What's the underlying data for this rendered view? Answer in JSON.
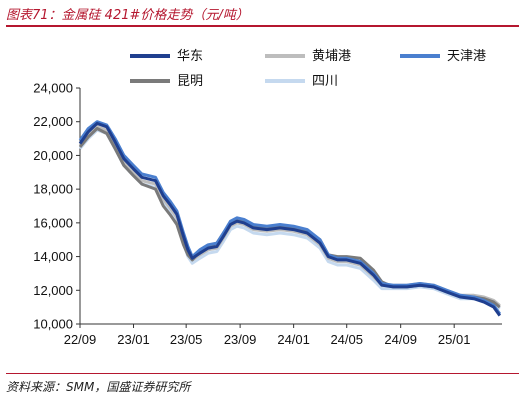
{
  "header": {
    "title": "图表71：金属硅 421#价格走势（元/吨）"
  },
  "footer": {
    "source": "资料来源：SMM，国盛证券研究所"
  },
  "chart_data": {
    "type": "line",
    "title": "",
    "xlabel": "",
    "ylabel": "",
    "ylim": [
      10000,
      24000
    ],
    "yticks": [
      "10,000",
      "12,000",
      "14,000",
      "16,000",
      "18,000",
      "20,000",
      "22,000",
      "24,000"
    ],
    "yticks_values": [
      10000,
      12000,
      14000,
      16000,
      18000,
      20000,
      22000,
      24000
    ],
    "xticks": [
      "22/09",
      "23/01",
      "23/05",
      "23/09",
      "24/01",
      "24/05",
      "24/09",
      "25/01"
    ],
    "xticks_values": [
      "2022-09-01",
      "2023-01-01",
      "2023-05-01",
      "2023-09-01",
      "2024-01-01",
      "2024-05-01",
      "2024-09-01",
      "2025-01-01"
    ],
    "xlim": [
      "2022-09-01",
      "2025-04-20"
    ],
    "grid": false,
    "legend": "top",
    "series": [
      {
        "name": "华东",
        "color": "#1f3f8f",
        "points": [
          [
            "2022-09-01",
            20700
          ],
          [
            "2022-09-20",
            21400
          ],
          [
            "2022-10-10",
            21900
          ],
          [
            "2022-11-01",
            21700
          ],
          [
            "2022-11-20",
            20800
          ],
          [
            "2022-12-10",
            19800
          ],
          [
            "2023-01-01",
            19200
          ],
          [
            "2023-01-20",
            18700
          ],
          [
            "2023-02-20",
            18500
          ],
          [
            "2023-03-10",
            17600
          ],
          [
            "2023-03-25",
            17100
          ],
          [
            "2023-04-10",
            16500
          ],
          [
            "2023-04-25",
            15200
          ],
          [
            "2023-05-05",
            14400
          ],
          [
            "2023-05-15",
            13900
          ],
          [
            "2023-06-01",
            14200
          ],
          [
            "2023-06-20",
            14500
          ],
          [
            "2023-07-10",
            14600
          ],
          [
            "2023-07-25",
            15200
          ],
          [
            "2023-08-10",
            15900
          ],
          [
            "2023-08-25",
            16100
          ],
          [
            "2023-09-10",
            16000
          ],
          [
            "2023-10-01",
            15700
          ],
          [
            "2023-11-01",
            15600
          ],
          [
            "2023-12-01",
            15700
          ],
          [
            "2024-01-01",
            15600
          ],
          [
            "2024-02-01",
            15400
          ],
          [
            "2024-03-01",
            14800
          ],
          [
            "2024-03-20",
            14000
          ],
          [
            "2024-04-10",
            13800
          ],
          [
            "2024-05-01",
            13800
          ],
          [
            "2024-06-01",
            13600
          ],
          [
            "2024-07-01",
            12900
          ],
          [
            "2024-07-20",
            12300
          ],
          [
            "2024-08-15",
            12200
          ],
          [
            "2024-09-15",
            12200
          ],
          [
            "2024-10-15",
            12300
          ],
          [
            "2024-11-15",
            12200
          ],
          [
            "2024-12-15",
            11900
          ],
          [
            "2025-01-15",
            11600
          ],
          [
            "2025-02-15",
            11500
          ],
          [
            "2025-03-10",
            11300
          ],
          [
            "2025-04-01",
            11000
          ],
          [
            "2025-04-15",
            10500
          ]
        ]
      },
      {
        "name": "黄埔港",
        "color": "#bdbdbd",
        "points": [
          [
            "2022-09-01",
            20600
          ],
          [
            "2022-09-20",
            21200
          ],
          [
            "2022-10-10",
            21700
          ],
          [
            "2022-11-01",
            21500
          ],
          [
            "2022-11-20",
            20600
          ],
          [
            "2022-12-10",
            19600
          ],
          [
            "2023-01-01",
            19000
          ],
          [
            "2023-01-20",
            18500
          ],
          [
            "2023-02-20",
            18300
          ],
          [
            "2023-03-10",
            17400
          ],
          [
            "2023-03-25",
            16900
          ],
          [
            "2023-04-10",
            16300
          ],
          [
            "2023-04-25",
            15000
          ],
          [
            "2023-05-05",
            14200
          ],
          [
            "2023-05-15",
            13800
          ],
          [
            "2023-06-01",
            14100
          ],
          [
            "2023-06-20",
            14400
          ],
          [
            "2023-07-10",
            14500
          ],
          [
            "2023-07-25",
            15100
          ],
          [
            "2023-08-10",
            15800
          ],
          [
            "2023-08-25",
            16000
          ],
          [
            "2023-09-10",
            15900
          ],
          [
            "2023-10-01",
            15600
          ],
          [
            "2023-11-01",
            15500
          ],
          [
            "2023-12-01",
            15600
          ],
          [
            "2024-01-01",
            15500
          ],
          [
            "2024-02-01",
            15300
          ],
          [
            "2024-03-01",
            14700
          ],
          [
            "2024-03-20",
            13900
          ],
          [
            "2024-04-10",
            13700
          ],
          [
            "2024-05-01",
            13700
          ],
          [
            "2024-06-01",
            13500
          ],
          [
            "2024-07-01",
            12800
          ],
          [
            "2024-07-20",
            12300
          ],
          [
            "2024-08-15",
            12300
          ],
          [
            "2024-09-15",
            12300
          ],
          [
            "2024-10-15",
            12400
          ],
          [
            "2024-11-15",
            12300
          ],
          [
            "2024-12-15",
            12000
          ],
          [
            "2025-01-15",
            11700
          ],
          [
            "2025-02-15",
            11700
          ],
          [
            "2025-03-10",
            11600
          ],
          [
            "2025-04-01",
            11400
          ],
          [
            "2025-04-15",
            11100
          ]
        ]
      },
      {
        "name": "天津港",
        "color": "#4a7fcf",
        "points": [
          [
            "2022-09-01",
            20900
          ],
          [
            "2022-09-20",
            21600
          ],
          [
            "2022-10-10",
            22000
          ],
          [
            "2022-11-01",
            21800
          ],
          [
            "2022-11-20",
            21000
          ],
          [
            "2022-12-10",
            20000
          ],
          [
            "2023-01-01",
            19400
          ],
          [
            "2023-01-20",
            18900
          ],
          [
            "2023-02-20",
            18700
          ],
          [
            "2023-03-10",
            17800
          ],
          [
            "2023-03-25",
            17300
          ],
          [
            "2023-04-10",
            16700
          ],
          [
            "2023-04-25",
            15400
          ],
          [
            "2023-05-05",
            14600
          ],
          [
            "2023-05-15",
            14000
          ],
          [
            "2023-06-01",
            14400
          ],
          [
            "2023-06-20",
            14700
          ],
          [
            "2023-07-10",
            14800
          ],
          [
            "2023-07-25",
            15400
          ],
          [
            "2023-08-10",
            16100
          ],
          [
            "2023-08-25",
            16300
          ],
          [
            "2023-09-10",
            16200
          ],
          [
            "2023-10-01",
            15900
          ],
          [
            "2023-11-01",
            15800
          ],
          [
            "2023-12-01",
            15900
          ],
          [
            "2024-01-01",
            15800
          ],
          [
            "2024-02-01",
            15600
          ],
          [
            "2024-03-01",
            15000
          ],
          [
            "2024-03-20",
            14100
          ],
          [
            "2024-04-10",
            13900
          ],
          [
            "2024-05-01",
            13900
          ],
          [
            "2024-06-01",
            13700
          ],
          [
            "2024-07-01",
            13000
          ],
          [
            "2024-07-20",
            12400
          ],
          [
            "2024-08-15",
            12300
          ],
          [
            "2024-09-15",
            12300
          ],
          [
            "2024-10-15",
            12400
          ],
          [
            "2024-11-15",
            12300
          ],
          [
            "2024-12-15",
            12000
          ],
          [
            "2025-01-15",
            11700
          ],
          [
            "2025-02-15",
            11600
          ],
          [
            "2025-03-10",
            11400
          ],
          [
            "2025-04-01",
            11100
          ],
          [
            "2025-04-15",
            10600
          ]
        ]
      },
      {
        "name": "昆明",
        "color": "#7a7a7a",
        "points": [
          [
            "2022-09-01",
            20500
          ],
          [
            "2022-09-20",
            21100
          ],
          [
            "2022-10-10",
            21600
          ],
          [
            "2022-11-01",
            21300
          ],
          [
            "2022-11-20",
            20400
          ],
          [
            "2022-12-10",
            19400
          ],
          [
            "2023-01-01",
            18800
          ],
          [
            "2023-01-20",
            18300
          ],
          [
            "2023-02-20",
            18000
          ],
          [
            "2023-03-10",
            17000
          ],
          [
            "2023-03-25",
            16500
          ],
          [
            "2023-04-10",
            15900
          ],
          [
            "2023-04-25",
            14700
          ],
          [
            "2023-05-05",
            14100
          ],
          [
            "2023-05-15",
            13800
          ],
          [
            "2023-06-01",
            14300
          ],
          [
            "2023-06-20",
            14600
          ],
          [
            "2023-07-10",
            14800
          ],
          [
            "2023-07-25",
            15400
          ],
          [
            "2023-08-10",
            16000
          ],
          [
            "2023-08-25",
            16200
          ],
          [
            "2023-09-10",
            16100
          ],
          [
            "2023-10-01",
            15800
          ],
          [
            "2023-11-01",
            15700
          ],
          [
            "2023-12-01",
            15800
          ],
          [
            "2024-01-01",
            15700
          ],
          [
            "2024-02-01",
            15500
          ],
          [
            "2024-03-01",
            15000
          ],
          [
            "2024-03-20",
            14100
          ],
          [
            "2024-04-10",
            14000
          ],
          [
            "2024-05-01",
            14000
          ],
          [
            "2024-06-01",
            13900
          ],
          [
            "2024-07-01",
            13200
          ],
          [
            "2024-07-20",
            12500
          ],
          [
            "2024-08-15",
            12200
          ],
          [
            "2024-09-15",
            12200
          ],
          [
            "2024-10-15",
            12300
          ],
          [
            "2024-11-15",
            12200
          ],
          [
            "2024-12-15",
            11900
          ],
          [
            "2025-01-15",
            11600
          ],
          [
            "2025-02-15",
            11600
          ],
          [
            "2025-03-10",
            11500
          ],
          [
            "2025-04-01",
            11300
          ],
          [
            "2025-04-15",
            11000
          ]
        ]
      },
      {
        "name": "四川",
        "color": "#c5d9ef",
        "points": [
          [
            "2022-09-01",
            20400
          ],
          [
            "2022-09-20",
            21000
          ],
          [
            "2022-10-10",
            21500
          ],
          [
            "2022-11-01",
            21300
          ],
          [
            "2022-11-20",
            20400
          ],
          [
            "2022-12-10",
            19400
          ],
          [
            "2023-01-01",
            18800
          ],
          [
            "2023-01-20",
            18300
          ],
          [
            "2023-02-20",
            18100
          ],
          [
            "2023-03-10",
            17200
          ],
          [
            "2023-03-25",
            16700
          ],
          [
            "2023-04-10",
            16100
          ],
          [
            "2023-04-25",
            14800
          ],
          [
            "2023-05-05",
            14000
          ],
          [
            "2023-05-15",
            13600
          ],
          [
            "2023-06-01",
            13900
          ],
          [
            "2023-06-20",
            14200
          ],
          [
            "2023-07-10",
            14300
          ],
          [
            "2023-07-25",
            14900
          ],
          [
            "2023-08-10",
            15600
          ],
          [
            "2023-08-25",
            15800
          ],
          [
            "2023-09-10",
            15700
          ],
          [
            "2023-10-01",
            15400
          ],
          [
            "2023-11-01",
            15300
          ],
          [
            "2023-12-01",
            15400
          ],
          [
            "2024-01-01",
            15300
          ],
          [
            "2024-02-01",
            15100
          ],
          [
            "2024-03-01",
            14500
          ],
          [
            "2024-03-20",
            13700
          ],
          [
            "2024-04-10",
            13500
          ],
          [
            "2024-05-01",
            13500
          ],
          [
            "2024-06-01",
            13300
          ],
          [
            "2024-07-01",
            12600
          ],
          [
            "2024-07-20",
            12100
          ],
          [
            "2024-08-15",
            12100
          ],
          [
            "2024-09-15",
            12100
          ],
          [
            "2024-10-15",
            12200
          ],
          [
            "2024-11-15",
            12100
          ],
          [
            "2024-12-15",
            11800
          ],
          [
            "2025-01-15",
            11500
          ],
          [
            "2025-02-15",
            11500
          ],
          [
            "2025-03-10",
            11400
          ],
          [
            "2025-04-01",
            11200
          ],
          [
            "2025-04-15",
            10900
          ]
        ]
      }
    ]
  }
}
